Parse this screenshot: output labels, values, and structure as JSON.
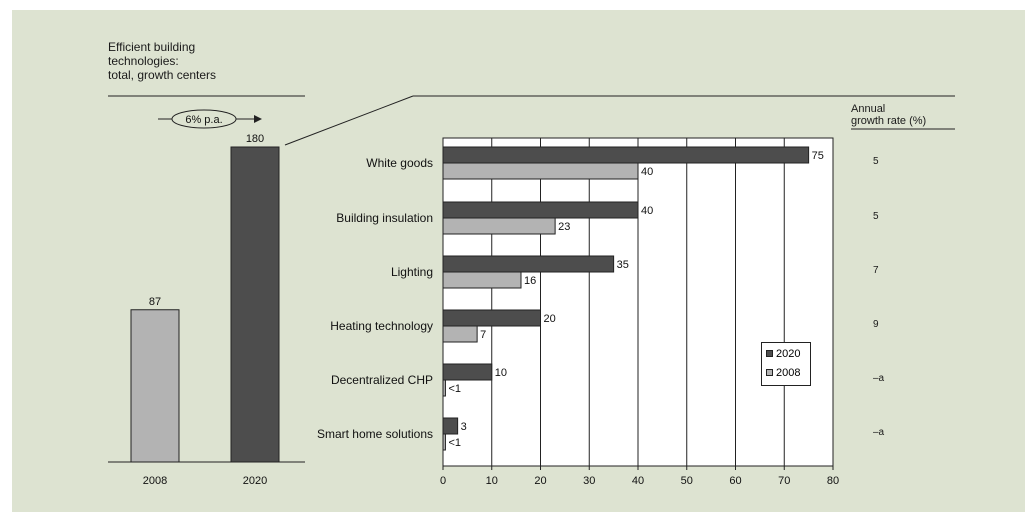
{
  "title_lines": [
    "Efficient building",
    "technologies:",
    "total, growth centers"
  ],
  "cagr_label": "6% p.a.",
  "rate_header_lines": [
    "Annual",
    "growth rate (%)"
  ],
  "colors": {
    "y2020": "#4d4d4d",
    "y2008": "#b3b3b3",
    "background": "#dde3d1",
    "plot_bg": "#ffffff"
  },
  "chart_data": [
    {
      "type": "bar",
      "categories": [
        "2008",
        "2020"
      ],
      "values": [
        87,
        180
      ],
      "value_labels": [
        "87",
        "180"
      ]
    },
    {
      "type": "bar",
      "orientation": "horizontal",
      "categories": [
        "White goods",
        "Building insulation",
        "Lighting",
        "Heating technology",
        "Decentralized CHP",
        "Smart home solutions"
      ],
      "series": [
        {
          "name": "2020",
          "values": [
            75,
            40,
            35,
            20,
            10,
            3
          ],
          "labels": [
            "75",
            "40",
            "35",
            "20",
            "10",
            "3"
          ]
        },
        {
          "name": "2008",
          "values": [
            40,
            23,
            16,
            7,
            0.5,
            0.5
          ],
          "labels": [
            "40",
            "23",
            "16",
            "7",
            "<1",
            "<1"
          ]
        }
      ],
      "xlim": [
        0,
        80
      ],
      "xticks": [
        "0",
        "10",
        "20",
        "30",
        "40",
        "50",
        "60",
        "70",
        "80"
      ],
      "grid": true,
      "legend": [
        "2020",
        "2008"
      ],
      "legend_position": "lower-right"
    }
  ],
  "growth_rates": [
    "5",
    "5",
    "7",
    "9",
    "–a",
    "–a"
  ]
}
